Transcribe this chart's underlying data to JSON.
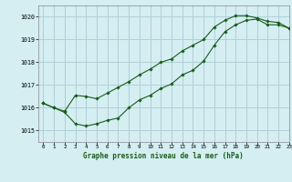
{
  "title": "Graphe pression niveau de la mer (hPa)",
  "bg_color": "#d4eef2",
  "grid_color": "#b0d0d8",
  "line_color": "#1a5c1a",
  "xlim": [
    -0.5,
    23
  ],
  "ylim": [
    1014.5,
    1020.5
  ],
  "yticks": [
    1015,
    1016,
    1017,
    1018,
    1019,
    1020
  ],
  "xticks": [
    0,
    1,
    2,
    3,
    4,
    5,
    6,
    7,
    8,
    9,
    10,
    11,
    12,
    13,
    14,
    15,
    16,
    17,
    18,
    19,
    20,
    21,
    22,
    23
  ],
  "upper_x": [
    0,
    1,
    2,
    3,
    4,
    5,
    6,
    7,
    8,
    9,
    10,
    11,
    12,
    13,
    14,
    15,
    16,
    17,
    18,
    19,
    20,
    21,
    22,
    23
  ],
  "upper_y": [
    1016.2,
    1016.0,
    1015.85,
    1016.55,
    1016.5,
    1016.4,
    1016.65,
    1016.9,
    1017.15,
    1017.45,
    1017.7,
    1018.0,
    1018.15,
    1018.5,
    1018.75,
    1019.0,
    1019.55,
    1019.85,
    1020.05,
    1020.05,
    1019.95,
    1019.8,
    1019.75,
    1019.5
  ],
  "lower_x": [
    0,
    1,
    2,
    3,
    4,
    5,
    6,
    7,
    8,
    9,
    10,
    11,
    12,
    13,
    14,
    15,
    16,
    17,
    18,
    19,
    20,
    21,
    22,
    23
  ],
  "lower_y": [
    1016.2,
    1016.0,
    1015.8,
    1015.3,
    1015.2,
    1015.3,
    1015.45,
    1015.55,
    1016.0,
    1016.35,
    1016.55,
    1016.85,
    1017.05,
    1017.45,
    1017.65,
    1018.05,
    1018.75,
    1019.35,
    1019.65,
    1019.85,
    1019.9,
    1019.65,
    1019.65,
    1019.5
  ]
}
